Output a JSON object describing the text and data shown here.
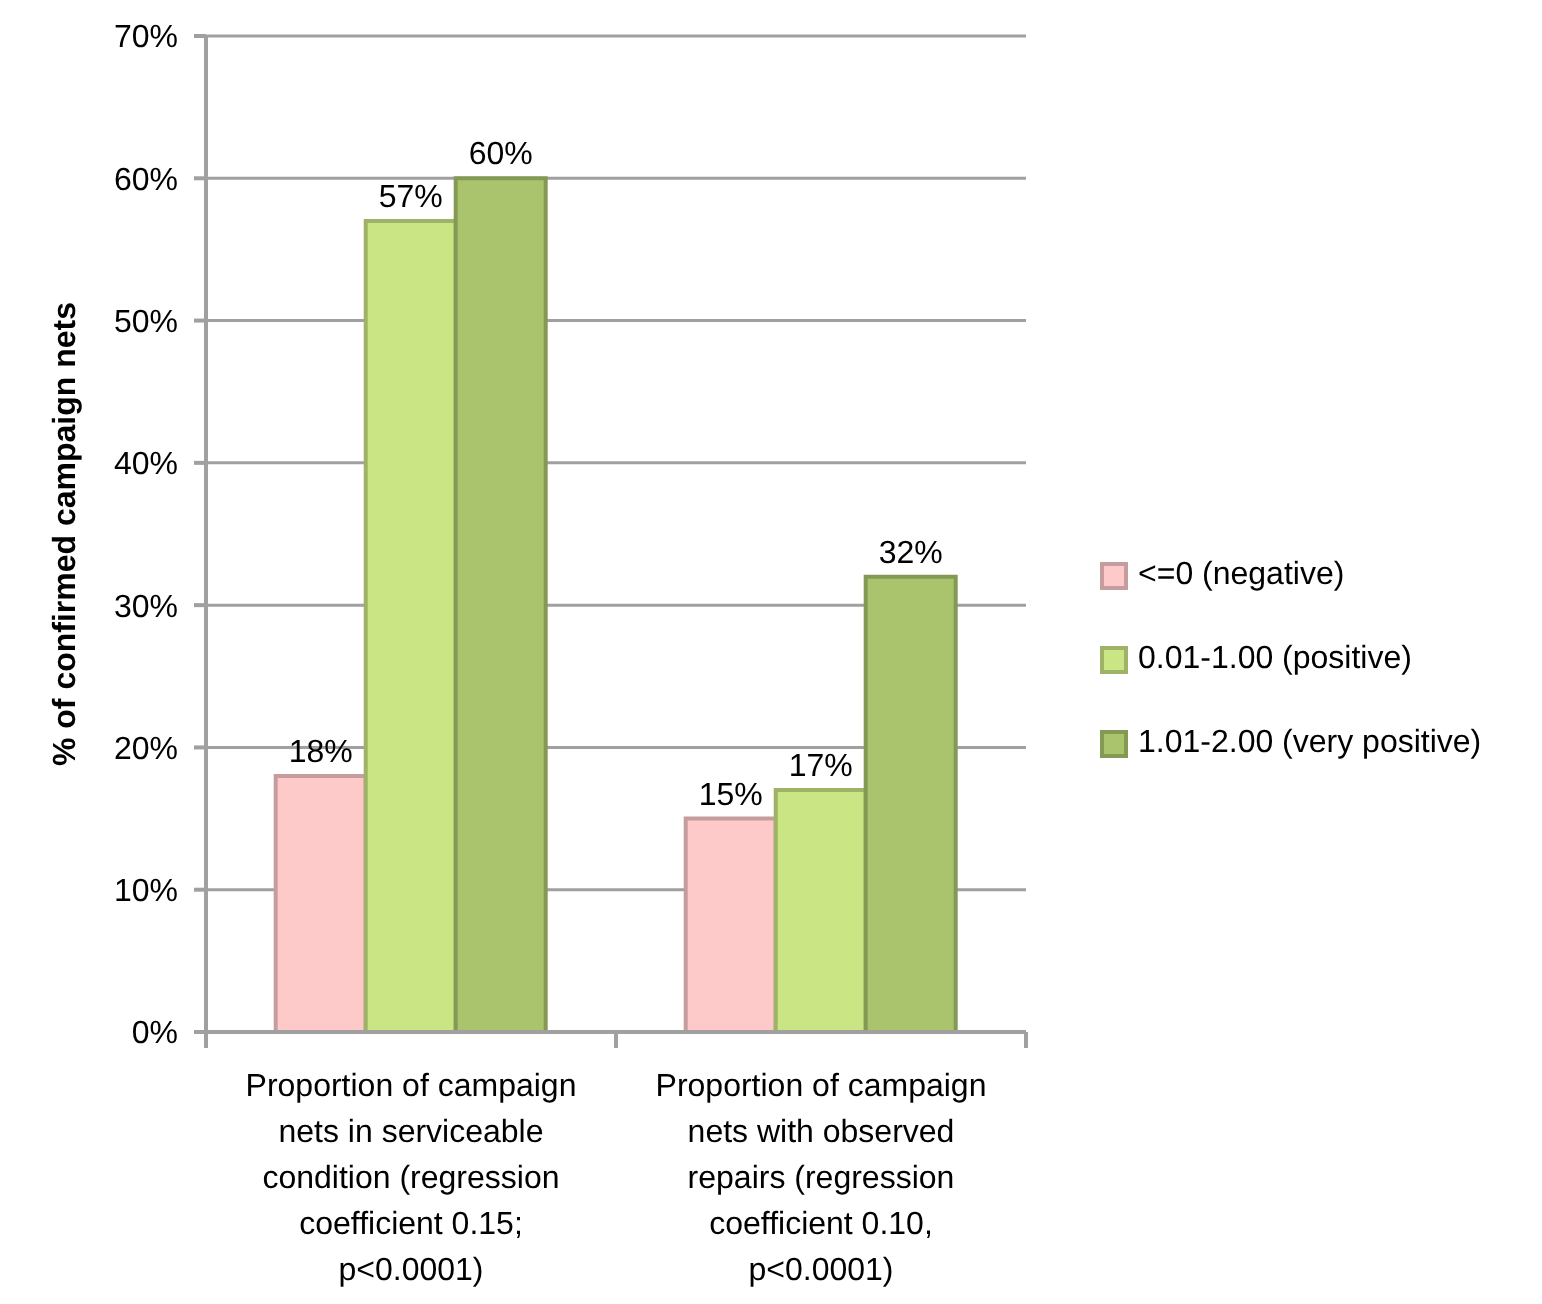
{
  "chart_data": {
    "type": "bar",
    "ylabel": "% of confirmed campaign nets",
    "categories": [
      "Proportion of campaign nets in serviceable condition (regression coefficient 0.15; p<0.0001)",
      "Proportion of campaign nets with observed repairs (regression coefficient 0.10, p<0.0001)"
    ],
    "series": [
      {
        "name": "<=0 (negative)",
        "color": "#fdc9c9",
        "values": [
          18,
          15
        ],
        "value_labels": [
          "18%",
          "15%"
        ]
      },
      {
        "name": "0.01-1.00 (positive)",
        "color": "#cae584",
        "values": [
          57,
          17
        ],
        "value_labels": [
          "57%",
          "17%"
        ]
      },
      {
        "name": "1.01-2.00 (very positive)",
        "color": "#a9c46c",
        "values": [
          60,
          32
        ],
        "value_labels": [
          "60%",
          "32%"
        ]
      }
    ],
    "ylim": [
      0,
      70
    ],
    "yticks": [
      {
        "value": 0,
        "label": "0%"
      },
      {
        "value": 10,
        "label": "10%"
      },
      {
        "value": 20,
        "label": "20%"
      },
      {
        "value": 30,
        "label": "30%"
      },
      {
        "value": 40,
        "label": "40%"
      },
      {
        "value": 50,
        "label": "50%"
      },
      {
        "value": 60,
        "label": "60%"
      },
      {
        "value": 70,
        "label": "70%"
      }
    ],
    "grid": "y",
    "legend": "right"
  }
}
